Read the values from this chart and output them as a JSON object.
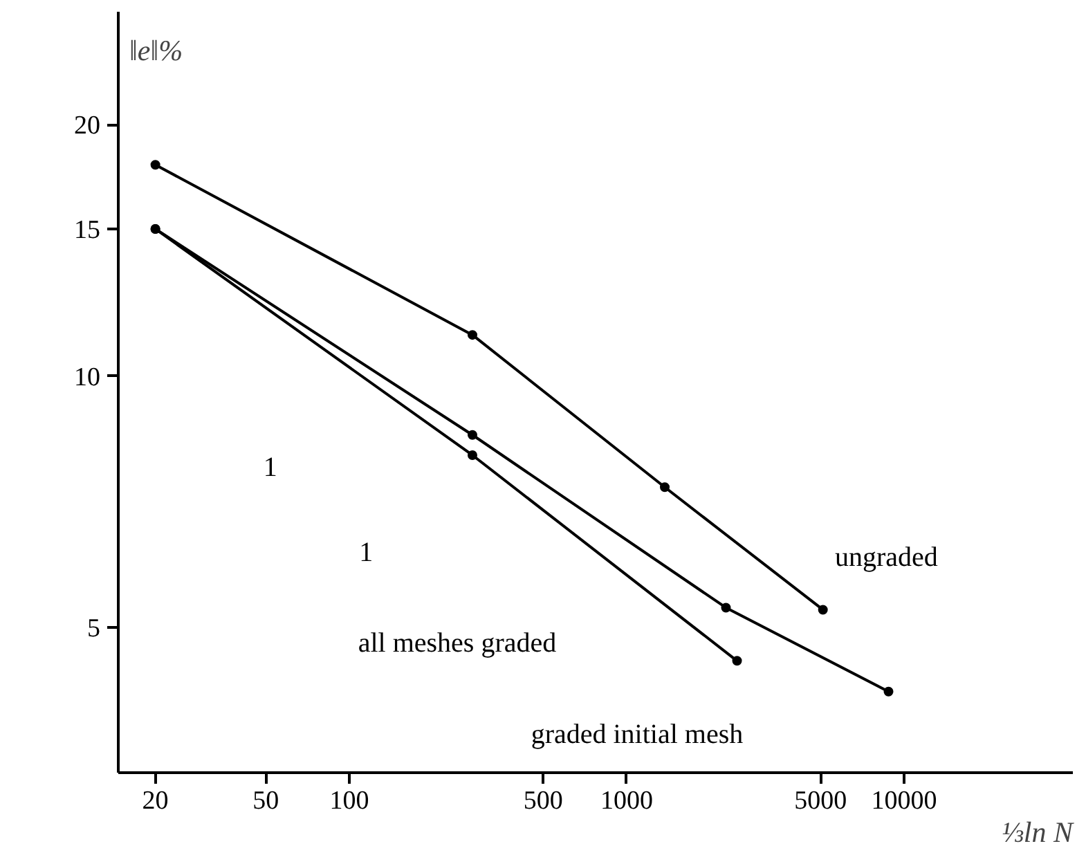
{
  "chart_data": {
    "type": "line",
    "xlabel": "⅓ln N",
    "ylabel": "‖e‖%",
    "log": "xy",
    "xlim": [
      14.7,
      40600
    ],
    "ylim": [
      3.35,
      27.3
    ],
    "xticks": [
      20,
      50,
      100,
      500,
      1000,
      5000,
      10000
    ],
    "yticks": [
      5,
      10,
      15,
      20
    ],
    "grid": false,
    "marker": "circle",
    "line_style": "solid",
    "series": [
      {
        "color": "#000000",
        "x": [
          20,
          278,
          1372,
          5100
        ],
        "values": [
          17.9,
          11.2,
          7.36,
          5.25
        ]
      },
      {
        "color": "#000000",
        "x": [
          20,
          278,
          2280,
          8790
        ],
        "values": [
          15.0,
          8.5,
          5.28,
          4.19
        ]
      },
      {
        "color": "#000000",
        "x": [
          20,
          278,
          2500
        ],
        "values": [
          15.0,
          8.04,
          4.56
        ]
      }
    ],
    "annotations": [
      "ungraded",
      "all meshes graded",
      "graded initial mesh",
      "1",
      "1"
    ]
  }
}
